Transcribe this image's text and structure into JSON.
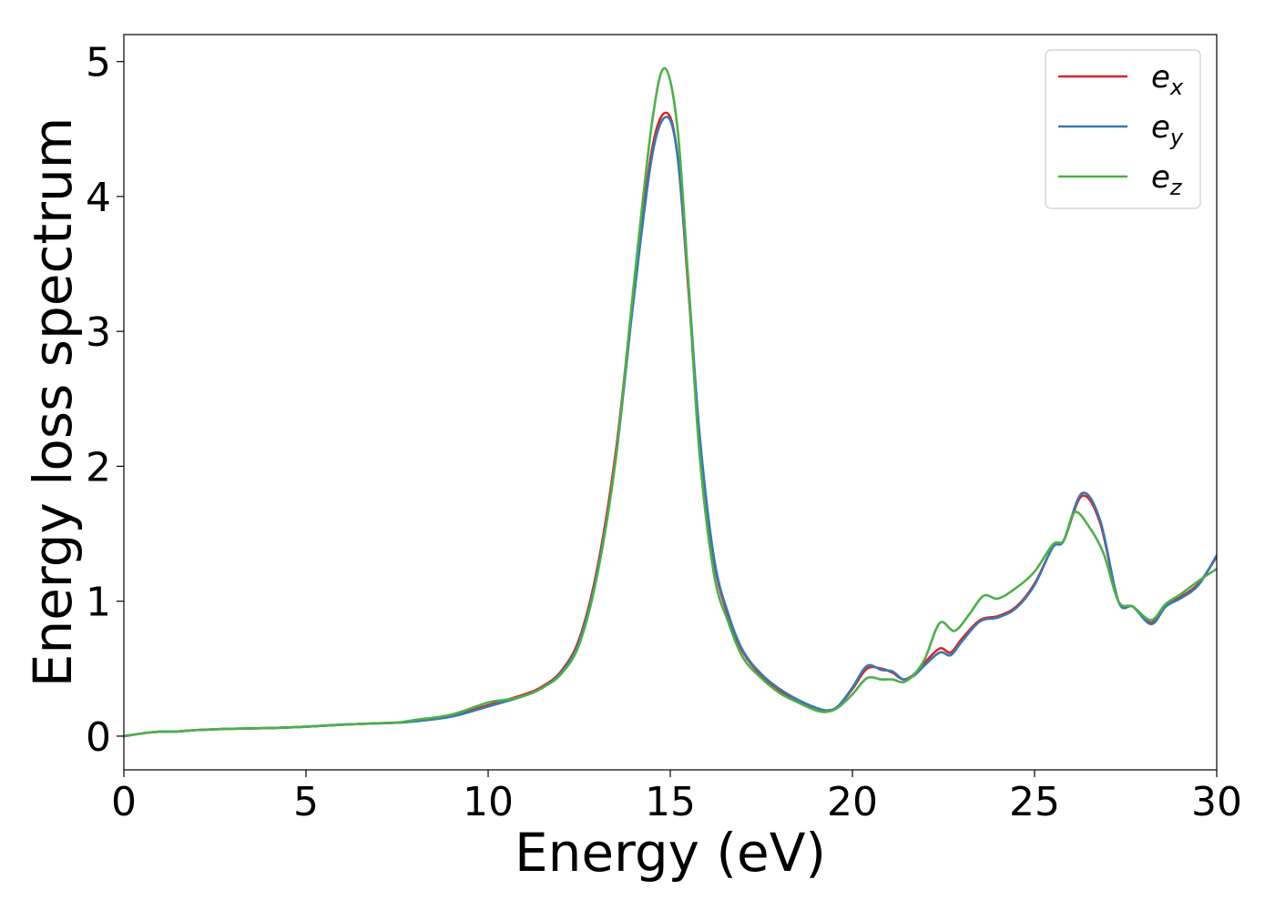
{
  "chart_data": {
    "type": "line",
    "title": "",
    "xlabel": "Energy (eV)",
    "ylabel": "Energy loss spectrum",
    "xlim": [
      0,
      30
    ],
    "ylim": [
      -0.25,
      5.2
    ],
    "xticks": [
      0,
      5,
      10,
      15,
      20,
      25,
      30
    ],
    "yticks": [
      0,
      1,
      2,
      3,
      4,
      5
    ],
    "grid": false,
    "legend_position": "top-right",
    "series": [
      {
        "name": "x",
        "legend_base": "e",
        "legend_sub": "x",
        "color": "#d62728",
        "x": [
          0,
          0.8,
          1.5,
          2,
          3,
          4,
          5,
          6,
          7,
          7.5,
          8,
          9,
          10,
          11,
          11.5,
          12,
          12.5,
          13,
          13.5,
          14,
          14.5,
          14.9,
          15.2,
          15.5,
          15.8,
          16.2,
          16.6,
          17,
          17.5,
          18,
          18.5,
          19,
          19.3,
          19.6,
          20,
          20.4,
          20.8,
          21.1,
          21.4,
          21.7,
          22,
          22.4,
          22.7,
          23,
          23.5,
          24,
          24.5,
          25,
          25.5,
          25.8,
          26.3,
          26.8,
          27.3,
          27.7,
          28.2,
          28.6,
          29,
          29.5,
          30
        ],
        "y": [
          0,
          0.03,
          0.035,
          0.045,
          0.055,
          0.06,
          0.07,
          0.085,
          0.095,
          0.1,
          0.11,
          0.15,
          0.23,
          0.31,
          0.37,
          0.48,
          0.72,
          1.25,
          2.1,
          3.3,
          4.35,
          4.62,
          4.3,
          3.3,
          2.2,
          1.3,
          0.88,
          0.62,
          0.45,
          0.34,
          0.26,
          0.21,
          0.19,
          0.22,
          0.35,
          0.5,
          0.5,
          0.47,
          0.42,
          0.46,
          0.55,
          0.65,
          0.62,
          0.72,
          0.86,
          0.89,
          0.96,
          1.13,
          1.4,
          1.45,
          1.78,
          1.58,
          1.0,
          0.96,
          0.84,
          0.97,
          1.03,
          1.13,
          1.33
        ]
      },
      {
        "name": "y",
        "legend_base": "e",
        "legend_sub": "y",
        "color": "#3b78b0",
        "x": [
          0,
          0.8,
          1.5,
          2,
          3,
          4,
          5,
          6,
          7,
          7.5,
          8,
          9,
          10,
          11,
          11.5,
          12,
          12.5,
          13,
          13.5,
          14,
          14.5,
          14.9,
          15.2,
          15.5,
          15.8,
          16.2,
          16.6,
          17,
          17.5,
          18,
          18.5,
          19,
          19.3,
          19.6,
          20,
          20.4,
          20.8,
          21.1,
          21.4,
          21.7,
          22,
          22.4,
          22.7,
          23,
          23.5,
          24,
          24.5,
          25,
          25.5,
          25.8,
          26.3,
          26.8,
          27.3,
          27.7,
          28.2,
          28.6,
          29,
          29.5,
          30
        ],
        "y": [
          0,
          0.03,
          0.035,
          0.045,
          0.055,
          0.06,
          0.07,
          0.085,
          0.095,
          0.1,
          0.11,
          0.145,
          0.22,
          0.3,
          0.36,
          0.47,
          0.7,
          1.22,
          2.05,
          3.25,
          4.3,
          4.59,
          4.3,
          3.35,
          2.25,
          1.32,
          0.9,
          0.63,
          0.46,
          0.35,
          0.27,
          0.21,
          0.19,
          0.22,
          0.36,
          0.52,
          0.49,
          0.48,
          0.42,
          0.45,
          0.53,
          0.62,
          0.6,
          0.7,
          0.85,
          0.88,
          0.95,
          1.12,
          1.4,
          1.45,
          1.8,
          1.6,
          1.0,
          0.96,
          0.83,
          0.96,
          1.02,
          1.12,
          1.34
        ]
      },
      {
        "name": "z",
        "legend_base": "e",
        "legend_sub": "z",
        "color": "#4daf4a",
        "x": [
          0,
          0.8,
          1.5,
          2,
          3,
          4,
          5,
          6,
          7,
          7.5,
          8,
          9,
          10,
          10.5,
          11,
          11.5,
          12,
          12.5,
          13,
          13.5,
          14,
          14.5,
          14.85,
          15.2,
          15.5,
          15.8,
          16.2,
          16.6,
          17,
          17.5,
          18,
          18.5,
          19,
          19.3,
          19.6,
          20,
          20.4,
          20.8,
          21.1,
          21.4,
          21.7,
          22,
          22.4,
          22.8,
          23.2,
          23.6,
          24,
          24.5,
          25,
          25.5,
          25.8,
          26.1,
          26.5,
          26.9,
          27.3,
          27.7,
          28.2,
          28.6,
          29,
          29.5,
          30
        ],
        "y": [
          0,
          0.03,
          0.035,
          0.045,
          0.055,
          0.06,
          0.07,
          0.085,
          0.095,
          0.1,
          0.12,
          0.16,
          0.25,
          0.27,
          0.3,
          0.36,
          0.46,
          0.68,
          1.2,
          2.05,
          3.35,
          4.55,
          4.95,
          4.5,
          3.35,
          2.1,
          1.2,
          0.84,
          0.58,
          0.43,
          0.32,
          0.25,
          0.19,
          0.18,
          0.21,
          0.31,
          0.43,
          0.42,
          0.42,
          0.4,
          0.46,
          0.58,
          0.84,
          0.78,
          0.9,
          1.04,
          1.02,
          1.1,
          1.22,
          1.42,
          1.45,
          1.66,
          1.55,
          1.35,
          1.0,
          0.96,
          0.86,
          0.98,
          1.05,
          1.15,
          1.24
        ]
      }
    ]
  }
}
